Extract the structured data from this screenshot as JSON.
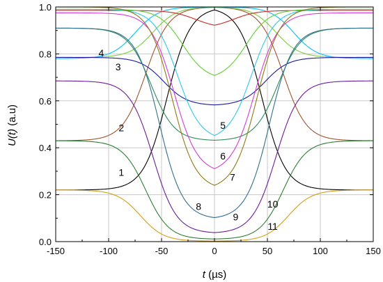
{
  "chart_data": {
    "type": "line",
    "xlabel_italic": "t",
    "xlabel_unit": " (µs)",
    "ylabel_italic": "U(t)",
    "ylabel_unit": " (a.u)",
    "xlim": [
      -150,
      150
    ],
    "ylim": [
      0,
      1
    ],
    "xticks": [
      -150,
      -100,
      -50,
      0,
      50,
      100,
      150
    ],
    "yticks": [
      0.0,
      0.2,
      0.4,
      0.6,
      0.8,
      1.0
    ],
    "xtick_labels": [
      "-150",
      "-100",
      "-50",
      "0",
      "50",
      "100",
      "150"
    ],
    "ytick_labels": [
      "0.0",
      "0.2",
      "0.4",
      "0.6",
      "0.8",
      "1.0"
    ],
    "grid": true,
    "series": [
      {
        "label": "1",
        "color": "#000000",
        "edge": 0.22,
        "center": 1.0,
        "half_width": 45,
        "steep": 11,
        "label_pos": [
          -88,
          0.28
        ]
      },
      {
        "label": "2",
        "color": "#a0522d",
        "edge": 0.43,
        "center": 1.0,
        "half_width": 65,
        "steep": 11,
        "label_pos": [
          -88,
          0.47
        ]
      },
      {
        "label": "3",
        "color": "#7ccd3c",
        "edge": 0.785,
        "center": 1.0,
        "half_width": 58,
        "steep": 11,
        "label_pos": [
          -91,
          0.73
        ]
      },
      {
        "label": "4",
        "color": "#00bfff",
        "edge": 0.78,
        "center": 1.0,
        "half_width": 75,
        "steep": 11,
        "label_pos": [
          -107,
          0.79
        ]
      },
      {
        "label": "",
        "color": "#cc2a20",
        "edge": 0.985,
        "center": 0.91,
        "half_width": 18,
        "steep": 11,
        "label_pos": null
      },
      {
        "label": "5",
        "color": "#1a1aa0",
        "edge": 0.785,
        "center": 0.58,
        "half_width": 48,
        "steep": 11,
        "label_pos": [
          8,
          0.48
        ]
      },
      {
        "label": "",
        "color": "#2e8b57",
        "edge": 0.91,
        "center": 0.43,
        "half_width": 60,
        "steep": 11,
        "label_pos": null
      },
      {
        "label": "6",
        "color": "#2ec8e8",
        "edge": 0.99,
        "center": 0.43,
        "half_width": 35,
        "steep": 11,
        "label_pos": [
          8,
          0.35
        ]
      },
      {
        "label": "",
        "color": "#5fcf2e",
        "edge": 0.99,
        "center": 0.69,
        "half_width": 30,
        "steep": 11,
        "label_pos": null
      },
      {
        "label": "7",
        "color": "#d63ad6",
        "edge": 0.975,
        "center": 0.29,
        "half_width": 38,
        "steep": 11,
        "label_pos": [
          17,
          0.26
        ]
      },
      {
        "label": "",
        "color": "#8b7a14",
        "edge": 1.0,
        "center": 0.22,
        "half_width": 40,
        "steep": 11,
        "label_pos": null
      },
      {
        "label": "8",
        "color": "#2f6f8f",
        "edge": 0.91,
        "center": 0.095,
        "half_width": 52,
        "steep": 11,
        "label_pos": [
          -15,
          0.135
        ]
      },
      {
        "label": "9",
        "color": "#6a1b9a",
        "edge": 0.685,
        "center": 0.035,
        "half_width": 58,
        "steep": 11,
        "label_pos": [
          20,
          0.09
        ]
      },
      {
        "label": "10",
        "color": "#2e7d32",
        "edge": 0.43,
        "center": 0.01,
        "half_width": 65,
        "steep": 11,
        "label_pos": [
          55,
          0.145
        ]
      },
      {
        "label": "11",
        "color": "#d4a017",
        "edge": 0.22,
        "center": 0.002,
        "half_width": 70,
        "steep": 11,
        "label_pos": [
          55,
          0.05
        ]
      }
    ]
  }
}
